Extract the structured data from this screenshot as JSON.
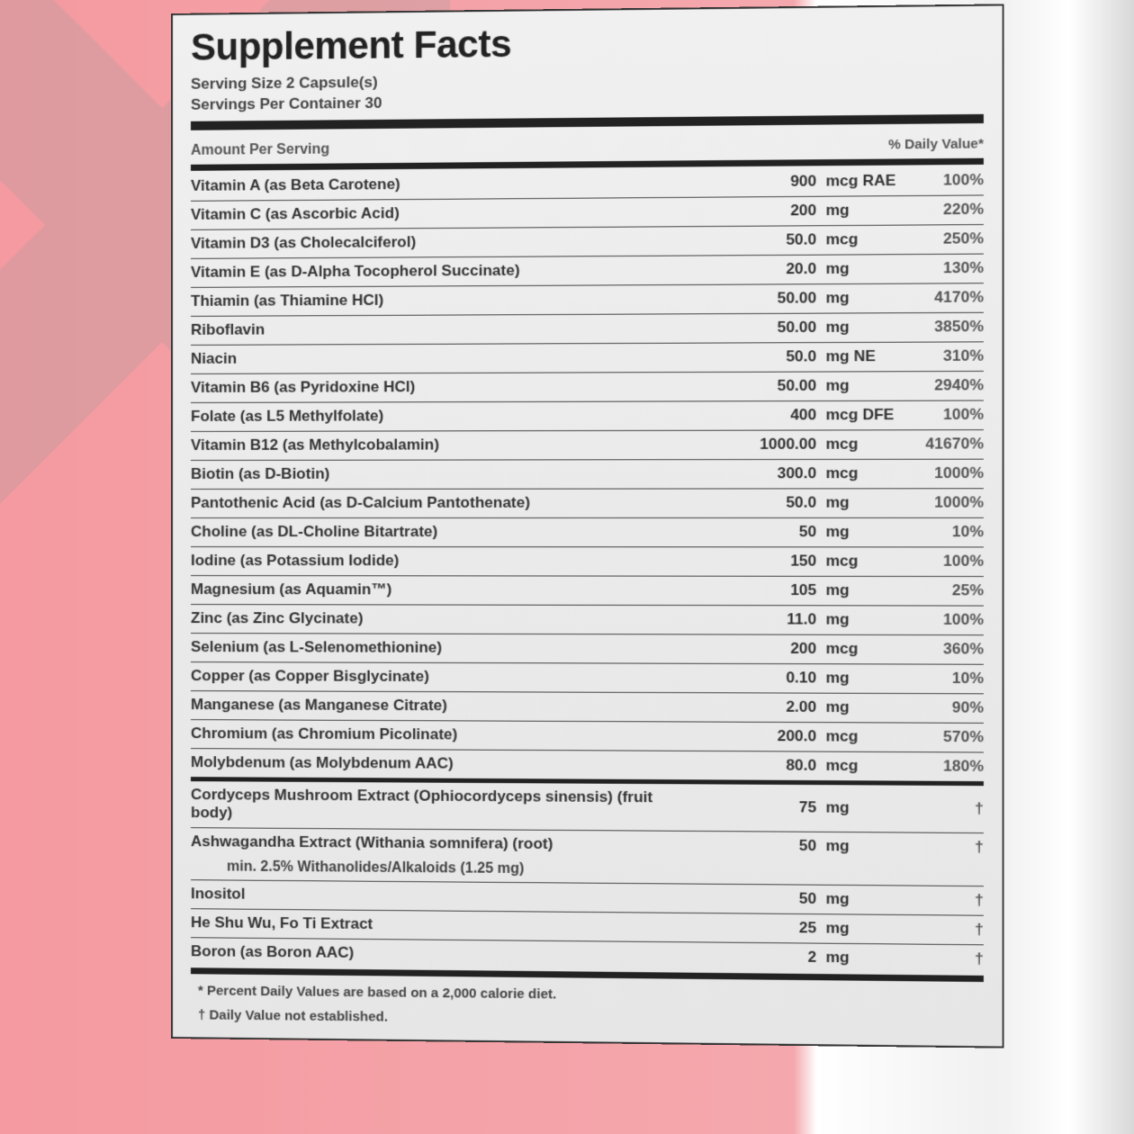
{
  "title": "Supplement Facts",
  "serving_size": "Serving Size 2 Capsule(s)",
  "servings_per": "Servings Per Container 30",
  "header": {
    "amount": "Amount Per Serving",
    "dv": "% Daily Value*"
  },
  "section1": [
    {
      "name": "Vitamin A (as Beta Carotene)",
      "amt": "900",
      "unit": "mcg RAE",
      "dv": "100%"
    },
    {
      "name": "Vitamin C (as Ascorbic Acid)",
      "amt": "200",
      "unit": "mg",
      "dv": "220%"
    },
    {
      "name": "Vitamin D3 (as Cholecalciferol)",
      "amt": "50.0",
      "unit": "mcg",
      "dv": "250%"
    },
    {
      "name": "Vitamin E (as D-Alpha Tocopherol Succinate)",
      "amt": "20.0",
      "unit": "mg",
      "dv": "130%"
    },
    {
      "name": "Thiamin (as Thiamine HCl)",
      "amt": "50.00",
      "unit": "mg",
      "dv": "4170%"
    },
    {
      "name": "Riboflavin",
      "amt": "50.00",
      "unit": "mg",
      "dv": "3850%"
    },
    {
      "name": "Niacin",
      "amt": "50.0",
      "unit": "mg NE",
      "dv": "310%"
    },
    {
      "name": "Vitamin B6 (as Pyridoxine HCl)",
      "amt": "50.00",
      "unit": "mg",
      "dv": "2940%"
    },
    {
      "name": "Folate (as L5 Methylfolate)",
      "amt": "400",
      "unit": "mcg DFE",
      "dv": "100%"
    },
    {
      "name": "Vitamin B12 (as Methylcobalamin)",
      "amt": "1000.00",
      "unit": "mcg",
      "dv": "41670%"
    },
    {
      "name": "Biotin (as D-Biotin)",
      "amt": "300.0",
      "unit": "mcg",
      "dv": "1000%"
    },
    {
      "name": "Pantothenic Acid (as D-Calcium Pantothenate)",
      "amt": "50.0",
      "unit": "mg",
      "dv": "1000%"
    },
    {
      "name": "Choline (as DL-Choline Bitartrate)",
      "amt": "50",
      "unit": "mg",
      "dv": "10%"
    },
    {
      "name": "Iodine (as Potassium Iodide)",
      "amt": "150",
      "unit": "mcg",
      "dv": "100%"
    },
    {
      "name": "Magnesium (as Aquamin™)",
      "amt": "105",
      "unit": "mg",
      "dv": "25%"
    },
    {
      "name": "Zinc (as Zinc Glycinate)",
      "amt": "11.0",
      "unit": "mg",
      "dv": "100%"
    },
    {
      "name": "Selenium (as L-Selenomethionine)",
      "amt": "200",
      "unit": "mcg",
      "dv": "360%"
    },
    {
      "name": "Copper (as Copper Bisglycinate)",
      "amt": "0.10",
      "unit": "mg",
      "dv": "10%"
    },
    {
      "name": "Manganese (as Manganese Citrate)",
      "amt": "2.00",
      "unit": "mg",
      "dv": "90%"
    },
    {
      "name": "Chromium (as Chromium Picolinate)",
      "amt": "200.0",
      "unit": "mcg",
      "dv": "570%"
    },
    {
      "name": "Molybdenum (as Molybdenum AAC)",
      "amt": "80.0",
      "unit": "mcg",
      "dv": "180%"
    }
  ],
  "section2": [
    {
      "name": "Cordyceps Mushroom Extract (Ophiocordyceps sinensis) (fruit body)",
      "amt": "75",
      "unit": "mg",
      "dv": "†"
    },
    {
      "name": "Ashwagandha Extract (Withania somnifera) (root)",
      "amt": "50",
      "unit": "mg",
      "dv": "†",
      "sub": "min. 2.5% Withanolides/Alkaloids (1.25 mg)"
    },
    {
      "name": "Inositol",
      "amt": "50",
      "unit": "mg",
      "dv": "†"
    },
    {
      "name": "He Shu Wu, Fo Ti Extract",
      "amt": "25",
      "unit": "mg",
      "dv": "†"
    },
    {
      "name": "Boron (as Boron AAC)",
      "amt": "2",
      "unit": "mg",
      "dv": "†"
    }
  ],
  "foot1": "* Percent Daily Values are based on a 2,000 calorie diet.",
  "foot2": "† Daily Value not established."
}
